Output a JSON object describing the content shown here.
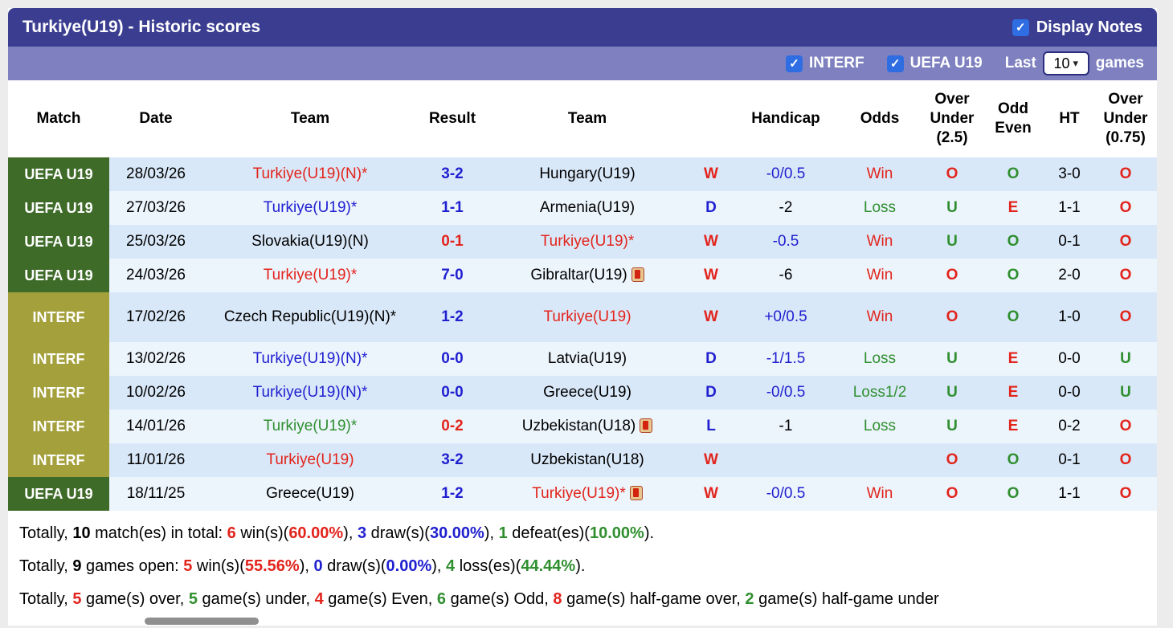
{
  "palette": {
    "red": "#e2241c",
    "blue": "#2020d0",
    "green": "#2f8f2f",
    "black": "#000000",
    "leagueGreen": "#3f6b29",
    "leagueOlive": "#a4a03c",
    "titleBg": "#3b3e90",
    "filterBg": "#7e80c0",
    "checkboxBlue": "#2e6de2",
    "rowDark": "#d9e8f8",
    "rowLight": "#ecf4fc"
  },
  "icons": {
    "check": "✓",
    "chevron_down": "▾"
  },
  "title_bar": {
    "title": "Turkiye(U19) - Historic scores",
    "display_notes": "Display Notes"
  },
  "filter_bar": {
    "interf_label": "INTERF",
    "uefa_label": "UEFA U19",
    "last_label": "Last",
    "select_value": "10",
    "games_label": "games"
  },
  "table": {
    "headers": {
      "match": "Match",
      "date": "Date",
      "home": "Team",
      "result": "Result",
      "away": "Team",
      "wdl": "",
      "handicap": "Handicap",
      "odds": "Odds",
      "ou25": "Over Under (2.5)",
      "oe": "Odd Even",
      "ht": "HT",
      "ou075": "Over Under (0.75)"
    },
    "rows": [
      {
        "league": "UEFA U19",
        "league_color": "leagueGreen",
        "date": "28/03/26",
        "home": "Turkiye(U19)(N)*",
        "home_color": "red",
        "result": "3-2",
        "result_color": "blue",
        "away": "Hungary(U19)",
        "away_color": "black",
        "away_card": false,
        "wdl": "W",
        "wdl_color": "red",
        "handicap": "-0/0.5",
        "handicap_color": "blue",
        "odds": "Win",
        "odds_color": "red",
        "ou25": "O",
        "ou25_color": "red",
        "oe": "O",
        "oe_color": "green",
        "ht": "3-0",
        "ou075": "O",
        "ou075_color": "red"
      },
      {
        "league": "UEFA U19",
        "league_color": "leagueGreen",
        "date": "27/03/26",
        "home": "Turkiye(U19)*",
        "home_color": "blue",
        "result": "1-1",
        "result_color": "blue",
        "away": "Armenia(U19)",
        "away_color": "black",
        "away_card": false,
        "wdl": "D",
        "wdl_color": "blue",
        "handicap": "-2",
        "handicap_color": "black",
        "odds": "Loss",
        "odds_color": "green",
        "ou25": "U",
        "ou25_color": "green",
        "oe": "E",
        "oe_color": "red",
        "ht": "1-1",
        "ou075": "O",
        "ou075_color": "red"
      },
      {
        "league": "UEFA U19",
        "league_color": "leagueGreen",
        "date": "25/03/26",
        "home": "Slovakia(U19)(N)",
        "home_color": "black",
        "result": "0-1",
        "result_color": "red",
        "away": "Turkiye(U19)*",
        "away_color": "red",
        "away_card": false,
        "wdl": "W",
        "wdl_color": "red",
        "handicap": "-0.5",
        "handicap_color": "blue",
        "odds": "Win",
        "odds_color": "red",
        "ou25": "U",
        "ou25_color": "green",
        "oe": "O",
        "oe_color": "green",
        "ht": "0-1",
        "ou075": "O",
        "ou075_color": "red"
      },
      {
        "league": "UEFA U19",
        "league_color": "leagueGreen",
        "date": "24/03/26",
        "home": "Turkiye(U19)*",
        "home_color": "red",
        "result": "7-0",
        "result_color": "blue",
        "away": "Gibraltar(U19)",
        "away_color": "black",
        "away_card": true,
        "wdl": "W",
        "wdl_color": "red",
        "handicap": "-6",
        "handicap_color": "black",
        "odds": "Win",
        "odds_color": "red",
        "ou25": "O",
        "ou25_color": "red",
        "oe": "O",
        "oe_color": "green",
        "ht": "2-0",
        "ou075": "O",
        "ou075_color": "red"
      },
      {
        "league": "INTERF",
        "league_color": "leagueOlive",
        "date": "17/02/26",
        "home": "Czech Republic(U19)(N)*",
        "home_color": "black",
        "result": "1-2",
        "result_color": "blue",
        "away": "Turkiye(U19)",
        "away_color": "red",
        "away_card": false,
        "wdl": "W",
        "wdl_color": "red",
        "handicap": "+0/0.5",
        "handicap_color": "blue",
        "odds": "Win",
        "odds_color": "red",
        "ou25": "O",
        "ou25_color": "red",
        "oe": "O",
        "oe_color": "green",
        "ht": "1-0",
        "ou075": "O",
        "ou075_color": "red"
      },
      {
        "league": "INTERF",
        "league_color": "leagueOlive",
        "date": "13/02/26",
        "home": "Turkiye(U19)(N)*",
        "home_color": "blue",
        "result": "0-0",
        "result_color": "blue",
        "away": "Latvia(U19)",
        "away_color": "black",
        "away_card": false,
        "wdl": "D",
        "wdl_color": "blue",
        "handicap": "-1/1.5",
        "handicap_color": "blue",
        "odds": "Loss",
        "odds_color": "green",
        "ou25": "U",
        "ou25_color": "green",
        "oe": "E",
        "oe_color": "red",
        "ht": "0-0",
        "ou075": "U",
        "ou075_color": "green"
      },
      {
        "league": "INTERF",
        "league_color": "leagueOlive",
        "date": "10/02/26",
        "home": "Turkiye(U19)(N)*",
        "home_color": "blue",
        "result": "0-0",
        "result_color": "blue",
        "away": "Greece(U19)",
        "away_color": "black",
        "away_card": false,
        "wdl": "D",
        "wdl_color": "blue",
        "handicap": "-0/0.5",
        "handicap_color": "blue",
        "odds": "Loss1/2",
        "odds_color": "green",
        "ou25": "U",
        "ou25_color": "green",
        "oe": "E",
        "oe_color": "red",
        "ht": "0-0",
        "ou075": "U",
        "ou075_color": "green"
      },
      {
        "league": "INTERF",
        "league_color": "leagueOlive",
        "date": "14/01/26",
        "home": "Turkiye(U19)*",
        "home_color": "green",
        "result": "0-2",
        "result_color": "red",
        "away": "Uzbekistan(U18)",
        "away_color": "black",
        "away_card": true,
        "wdl": "L",
        "wdl_color": "blue",
        "handicap": "-1",
        "handicap_color": "black",
        "odds": "Loss",
        "odds_color": "green",
        "ou25": "U",
        "ou25_color": "green",
        "oe": "E",
        "oe_color": "red",
        "ht": "0-2",
        "ou075": "O",
        "ou075_color": "red"
      },
      {
        "league": "INTERF",
        "league_color": "leagueOlive",
        "date": "11/01/26",
        "home": "Turkiye(U19)",
        "home_color": "red",
        "result": "3-2",
        "result_color": "blue",
        "away": "Uzbekistan(U18)",
        "away_color": "black",
        "away_card": false,
        "wdl": "W",
        "wdl_color": "red",
        "handicap": "",
        "handicap_color": "black",
        "odds": "",
        "odds_color": "black",
        "ou25": "O",
        "ou25_color": "red",
        "oe": "O",
        "oe_color": "green",
        "ht": "0-1",
        "ou075": "O",
        "ou075_color": "red"
      },
      {
        "league": "UEFA U19",
        "league_color": "leagueGreen",
        "date": "18/11/25",
        "home": "Greece(U19)",
        "home_color": "black",
        "result": "1-2",
        "result_color": "blue",
        "away": "Turkiye(U19)*",
        "away_color": "red",
        "away_card": true,
        "wdl": "W",
        "wdl_color": "red",
        "handicap": "-0/0.5",
        "handicap_color": "blue",
        "odds": "Win",
        "odds_color": "red",
        "ou25": "O",
        "ou25_color": "red",
        "oe": "O",
        "oe_color": "green",
        "ht": "1-1",
        "ou075": "O",
        "ou075_color": "red"
      }
    ]
  },
  "summary": {
    "line1": [
      {
        "t": "Totally, ",
        "c": "black",
        "b": false
      },
      {
        "t": "10",
        "c": "black",
        "b": true
      },
      {
        "t": " match(es) in total: ",
        "c": "black",
        "b": false
      },
      {
        "t": "6",
        "c": "red",
        "b": true
      },
      {
        "t": " win(s)(",
        "c": "black",
        "b": false
      },
      {
        "t": "60.00%",
        "c": "red",
        "b": true
      },
      {
        "t": "), ",
        "c": "black",
        "b": false
      },
      {
        "t": "3",
        "c": "blue",
        "b": true
      },
      {
        "t": " draw(s)(",
        "c": "black",
        "b": false
      },
      {
        "t": "30.00%",
        "c": "blue",
        "b": true
      },
      {
        "t": "), ",
        "c": "black",
        "b": false
      },
      {
        "t": "1",
        "c": "green",
        "b": true
      },
      {
        "t": " defeat(es)(",
        "c": "black",
        "b": false
      },
      {
        "t": "10.00%",
        "c": "green",
        "b": true
      },
      {
        "t": ").",
        "c": "black",
        "b": false
      }
    ],
    "line2": [
      {
        "t": "Totally, ",
        "c": "black",
        "b": false
      },
      {
        "t": "9",
        "c": "black",
        "b": true
      },
      {
        "t": " games open: ",
        "c": "black",
        "b": false
      },
      {
        "t": "5",
        "c": "red",
        "b": true
      },
      {
        "t": " win(s)(",
        "c": "black",
        "b": false
      },
      {
        "t": "55.56%",
        "c": "red",
        "b": true
      },
      {
        "t": "), ",
        "c": "black",
        "b": false
      },
      {
        "t": "0",
        "c": "blue",
        "b": true
      },
      {
        "t": " draw(s)(",
        "c": "black",
        "b": false
      },
      {
        "t": "0.00%",
        "c": "blue",
        "b": true
      },
      {
        "t": "), ",
        "c": "black",
        "b": false
      },
      {
        "t": "4",
        "c": "green",
        "b": true
      },
      {
        "t": " loss(es)(",
        "c": "black",
        "b": false
      },
      {
        "t": "44.44%",
        "c": "green",
        "b": true
      },
      {
        "t": ").",
        "c": "black",
        "b": false
      }
    ],
    "line3": [
      {
        "t": "Totally, ",
        "c": "black",
        "b": false
      },
      {
        "t": "5",
        "c": "red",
        "b": true
      },
      {
        "t": " game(s) over, ",
        "c": "black",
        "b": false
      },
      {
        "t": "5",
        "c": "green",
        "b": true
      },
      {
        "t": " game(s) under, ",
        "c": "black",
        "b": false
      },
      {
        "t": "4",
        "c": "red",
        "b": true
      },
      {
        "t": " game(s) Even, ",
        "c": "black",
        "b": false
      },
      {
        "t": "6",
        "c": "green",
        "b": true
      },
      {
        "t": " game(s) Odd, ",
        "c": "black",
        "b": false
      },
      {
        "t": "8",
        "c": "red",
        "b": true
      },
      {
        "t": " game(s) half-game over, ",
        "c": "black",
        "b": false
      },
      {
        "t": "2",
        "c": "green",
        "b": true
      },
      {
        "t": " game(s) half-game under",
        "c": "black",
        "b": false
      }
    ]
  }
}
